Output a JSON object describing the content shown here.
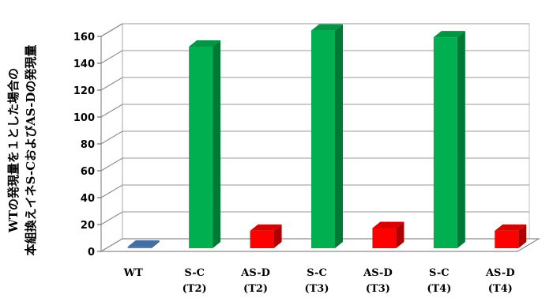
{
  "chart_data": {
    "type": "bar",
    "style": "3d-column",
    "categories": [
      {
        "line1": "WT",
        "line2": ""
      },
      {
        "line1": "S-C",
        "line2": "(T2)"
      },
      {
        "line1": "AS-D",
        "line2": "(T2)"
      },
      {
        "line1": "S-C",
        "line2": "(T3)"
      },
      {
        "line1": "AS-D",
        "line2": "(T3)"
      },
      {
        "line1": "S-C",
        "line2": "(T4)"
      },
      {
        "line1": "AS-D",
        "line2": "(T4)"
      }
    ],
    "values": [
      1,
      150,
      13,
      162,
      15,
      157,
      13
    ],
    "bar_colors": [
      "#4f81bd",
      "#00b050",
      "#ff0000",
      "#00b050",
      "#ff0000",
      "#00b050",
      "#ff0000"
    ],
    "ylim": [
      0,
      160
    ],
    "yticks": [
      0,
      20,
      40,
      60,
      80,
      100,
      120,
      140,
      160
    ],
    "ylabel_lines": [
      "WTの発現量を１とした場合の",
      "本組換えイネS-CおよびAS-Dの発現量"
    ],
    "grid": true,
    "legend": "none"
  }
}
